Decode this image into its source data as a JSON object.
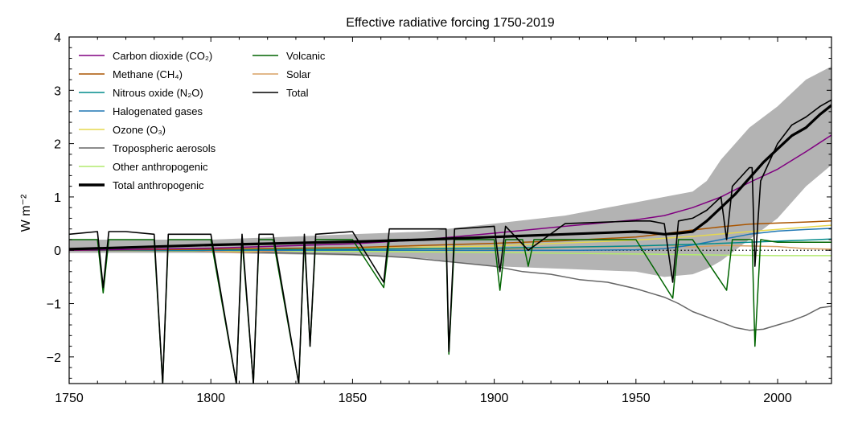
{
  "chart_data": {
    "type": "line",
    "title": "Effective radiative forcing 1750-2019",
    "xlabel": "",
    "ylabel": "W m⁻²",
    "xlim": [
      1750,
      2019
    ],
    "ylim": [
      -2.5,
      4
    ],
    "x_ticks": [
      1750,
      1800,
      1850,
      1900,
      1950,
      2000
    ],
    "y_ticks": [
      -2,
      -1,
      0,
      1,
      2,
      3,
      4
    ],
    "x_tick_labels": [
      "1750",
      "1800",
      "1850",
      "1900",
      "1950",
      "2000"
    ],
    "y_tick_labels": [
      "−2",
      "−1",
      "0",
      "1",
      "2",
      "3",
      "4"
    ],
    "grid": false,
    "legend_position": "top-left",
    "zero_line": "dotted",
    "uncertainty_band": {
      "label": "",
      "color": "#b3b3b3",
      "x": [
        1750,
        1800,
        1850,
        1875,
        1900,
        1925,
        1950,
        1960,
        1970,
        1975,
        1980,
        1990,
        2000,
        2010,
        2019
      ],
      "lower": [
        -0.05,
        -0.05,
        -0.1,
        -0.15,
        -0.3,
        -0.35,
        -0.4,
        -0.5,
        -0.45,
        -0.35,
        -0.2,
        0.2,
        0.6,
        1.2,
        1.6
      ],
      "upper": [
        0.2,
        0.2,
        0.3,
        0.35,
        0.5,
        0.65,
        0.9,
        1.0,
        1.1,
        1.3,
        1.7,
        2.3,
        2.7,
        3.2,
        3.45
      ]
    },
    "series": [
      {
        "name": "Carbon dioxide (CO₂)",
        "color": "#800080",
        "width": 1.5,
        "x": [
          1750,
          1800,
          1850,
          1875,
          1900,
          1925,
          1950,
          1960,
          1970,
          1980,
          1990,
          2000,
          2010,
          2019
        ],
        "y": [
          0.0,
          0.04,
          0.12,
          0.2,
          0.32,
          0.45,
          0.57,
          0.65,
          0.8,
          1.0,
          1.27,
          1.52,
          1.85,
          2.16
        ]
      },
      {
        "name": "Methane (CH₄)",
        "color": "#aa5500",
        "width": 1.5,
        "x": [
          1750,
          1800,
          1850,
          1900,
          1925,
          1950,
          1960,
          1970,
          1980,
          1990,
          2000,
          2010,
          2019
        ],
        "y": [
          0.0,
          0.02,
          0.05,
          0.13,
          0.18,
          0.25,
          0.31,
          0.38,
          0.44,
          0.49,
          0.51,
          0.53,
          0.55
        ]
      },
      {
        "name": "Nitrous oxide (N₂O)",
        "color": "#008b8b",
        "width": 1.5,
        "x": [
          1750,
          1800,
          1850,
          1900,
          1950,
          1970,
          1990,
          2019
        ],
        "y": [
          0.0,
          0.01,
          0.02,
          0.04,
          0.08,
          0.11,
          0.15,
          0.21
        ]
      },
      {
        "name": "Halogenated gases",
        "color": "#1f77b4",
        "width": 1.5,
        "x": [
          1750,
          1930,
          1950,
          1960,
          1970,
          1980,
          1990,
          2000,
          2010,
          2019
        ],
        "y": [
          0.0,
          0.0,
          0.01,
          0.03,
          0.1,
          0.2,
          0.3,
          0.36,
          0.39,
          0.41
        ]
      },
      {
        "name": "Ozone (O₃)",
        "color": "#e6d84e",
        "width": 1.5,
        "x": [
          1750,
          1800,
          1850,
          1900,
          1950,
          1970,
          1990,
          2019
        ],
        "y": [
          0.0,
          0.02,
          0.04,
          0.08,
          0.19,
          0.26,
          0.35,
          0.47
        ]
      },
      {
        "name": "Tropospheric aerosols",
        "color": "#666666",
        "width": 1.5,
        "x": [
          1750,
          1800,
          1850,
          1870,
          1900,
          1910,
          1920,
          1930,
          1940,
          1950,
          1955,
          1960,
          1965,
          1970,
          1975,
          1980,
          1985,
          1990,
          1995,
          2000,
          2005,
          2010,
          2015,
          2019
        ],
        "y": [
          0.0,
          -0.02,
          -0.08,
          -0.14,
          -0.3,
          -0.4,
          -0.45,
          -0.55,
          -0.6,
          -0.72,
          -0.8,
          -0.88,
          -1.0,
          -1.15,
          -1.25,
          -1.35,
          -1.45,
          -1.5,
          -1.48,
          -1.4,
          -1.32,
          -1.22,
          -1.08,
          -1.05
        ]
      },
      {
        "name": "Other anthropogenic",
        "color": "#b2ea6e",
        "width": 1.5,
        "x": [
          1750,
          1800,
          1850,
          1900,
          1950,
          1980,
          2000,
          2019
        ],
        "y": [
          0.0,
          -0.01,
          -0.02,
          -0.04,
          -0.07,
          -0.09,
          -0.1,
          -0.1
        ]
      },
      {
        "name": "Total anthropogenic",
        "color": "#000000",
        "width": 3.2,
        "x": [
          1750,
          1800,
          1850,
          1875,
          1900,
          1925,
          1950,
          1955,
          1960,
          1965,
          1970,
          1975,
          1980,
          1985,
          1990,
          1995,
          2000,
          2005,
          2010,
          2015,
          2019
        ],
        "y": [
          0.02,
          0.1,
          0.16,
          0.2,
          0.25,
          0.3,
          0.35,
          0.33,
          0.3,
          0.32,
          0.35,
          0.55,
          0.8,
          1.05,
          1.35,
          1.65,
          1.9,
          2.15,
          2.3,
          2.55,
          2.72
        ]
      },
      {
        "name": "Volcanic",
        "color": "#006400",
        "width": 1.5,
        "x": [
          1750,
          1755,
          1760,
          1762,
          1764,
          1770,
          1780,
          1783,
          1785,
          1790,
          1800,
          1809,
          1811,
          1815,
          1817,
          1822,
          1831,
          1833,
          1835,
          1837,
          1850,
          1861,
          1863,
          1870,
          1883,
          1884,
          1886,
          1900,
          1902,
          1904,
          1910,
          1912,
          1914,
          1930,
          1950,
          1963,
          1965,
          1970,
          1982,
          1984,
          1991,
          1992,
          1994,
          2000,
          2010,
          2019
        ],
        "y": [
          0.2,
          0.2,
          0.2,
          -0.8,
          0.2,
          0.2,
          0.2,
          -2.5,
          0.2,
          0.2,
          0.2,
          -2.5,
          0.2,
          -2.5,
          0.2,
          0.2,
          -2.5,
          0.2,
          -1.8,
          0.2,
          0.2,
          -0.7,
          0.2,
          0.2,
          0.2,
          -1.95,
          0.2,
          0.2,
          -0.75,
          0.2,
          0.2,
          -0.3,
          0.2,
          0.2,
          0.2,
          -0.9,
          0.2,
          0.2,
          -0.75,
          0.2,
          0.2,
          -1.8,
          0.2,
          0.15,
          0.15,
          0.15
        ]
      },
      {
        "name": "Solar",
        "color": "#d8a063",
        "width": 1.5,
        "x": [
          1750,
          1770,
          1790,
          1810,
          1830,
          1850,
          1870,
          1890,
          1910,
          1930,
          1950,
          1960,
          1970,
          1980,
          1990,
          2000,
          2010,
          2019
        ],
        "y": [
          0.03,
          0.06,
          0.01,
          -0.04,
          0.0,
          0.02,
          0.05,
          0.0,
          0.03,
          0.06,
          0.07,
          0.1,
          0.06,
          0.09,
          0.08,
          0.07,
          0.03,
          0.02
        ]
      },
      {
        "name": "Total",
        "color": "#000000",
        "width": 1.6,
        "x": [
          1750,
          1760,
          1762,
          1764,
          1770,
          1780,
          1783,
          1785,
          1790,
          1800,
          1809,
          1811,
          1815,
          1817,
          1822,
          1831,
          1833,
          1835,
          1837,
          1850,
          1861,
          1863,
          1870,
          1883,
          1884,
          1886,
          1900,
          1902,
          1904,
          1912,
          1925,
          1950,
          1955,
          1960,
          1963,
          1965,
          1970,
          1975,
          1980,
          1982,
          1984,
          1990,
          1991,
          1992,
          1994,
          2000,
          2005,
          2010,
          2015,
          2019
        ],
        "y": [
          0.3,
          0.35,
          -0.7,
          0.35,
          0.35,
          0.3,
          -2.5,
          0.3,
          0.3,
          0.3,
          -2.5,
          0.3,
          -2.5,
          0.3,
          0.3,
          -2.5,
          0.3,
          -1.8,
          0.3,
          0.35,
          -0.6,
          0.4,
          0.4,
          0.4,
          -1.9,
          0.4,
          0.45,
          -0.4,
          0.45,
          0.0,
          0.5,
          0.55,
          0.55,
          0.5,
          -0.6,
          0.55,
          0.6,
          0.75,
          1.0,
          0.2,
          1.2,
          1.55,
          1.55,
          -0.3,
          1.3,
          2.0,
          2.35,
          2.5,
          2.7,
          2.82
        ]
      }
    ],
    "legend_columns": [
      [
        "Carbon dioxide (CO₂)",
        "Methane (CH₄)",
        "Nitrous oxide (N₂O)",
        "Halogenated gases",
        "Ozone (O₃)",
        "Tropospheric aerosols",
        "Other anthropogenic",
        "Total anthropogenic"
      ],
      [
        "Volcanic",
        "Solar",
        "Total"
      ]
    ]
  }
}
